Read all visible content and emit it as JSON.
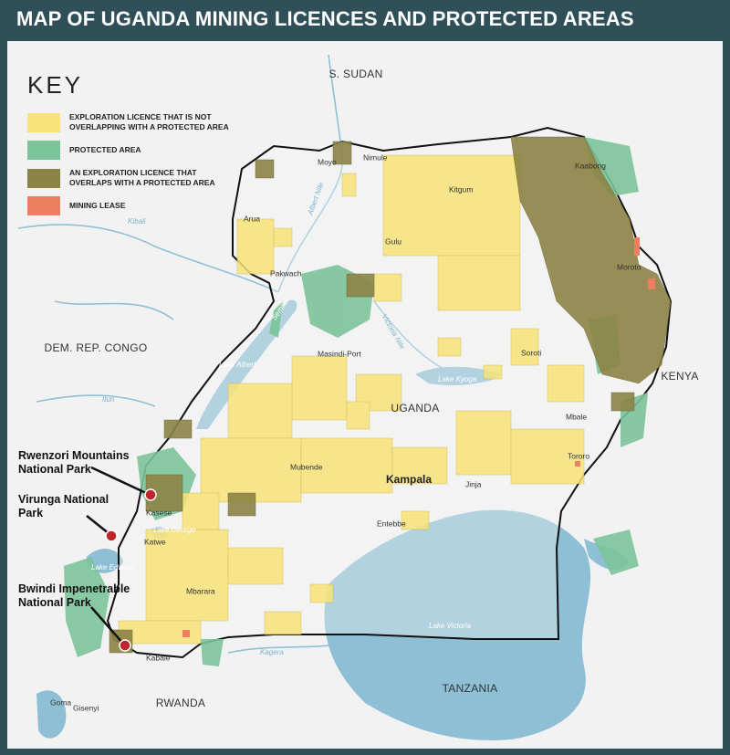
{
  "header": {
    "title": "MAP OF UGANDA MINING LICENCES AND PROTECTED AREAS"
  },
  "key": {
    "title": "KEY",
    "items": [
      {
        "label": "EXPLORATION LICENCE THAT IS NOT OVERLAPPING WITH A PROTECTED AREA",
        "color": "#f7e37a"
      },
      {
        "label": "PROTECTED AREA",
        "color": "#7cc49a"
      },
      {
        "label": "AN EXPLORATION LICENCE THAT OVERLAPS WITH A PROTECTED AREA",
        "color": "#8c8446"
      },
      {
        "label": "MINING LEASE",
        "color": "#ef7d62"
      }
    ]
  },
  "countries": [
    "S. SUDAN",
    "DEM. REP. CONGO",
    "KENYA",
    "UGANDA",
    "RWANDA",
    "TANZANIA"
  ],
  "places": [
    "Moyo",
    "Nimule",
    "Kitgum",
    "Kaabong",
    "Arua",
    "Gulu",
    "Pakwach",
    "Moroto",
    "Masindi-Port",
    "Soroti",
    "Mbale",
    "Tororo",
    "Mubende",
    "Kampala",
    "Jinja",
    "Entebbe",
    "Kasese",
    "Katwe",
    "Mbarara",
    "Kabale",
    "Goma",
    "Gisenyi"
  ],
  "water": [
    "Lake Albert",
    "Lake Kyoga",
    "Lake Victoria",
    "Lake Edward",
    "Lake George",
    "Albert Nile",
    "Victoria Nile",
    "Semliki",
    "Kagera",
    "Ituri",
    "Kibali"
  ],
  "parks": [
    "Rwenzori Mountains National Park",
    "Virunga National Park",
    "Bwindi Impenetrable National Park"
  ]
}
